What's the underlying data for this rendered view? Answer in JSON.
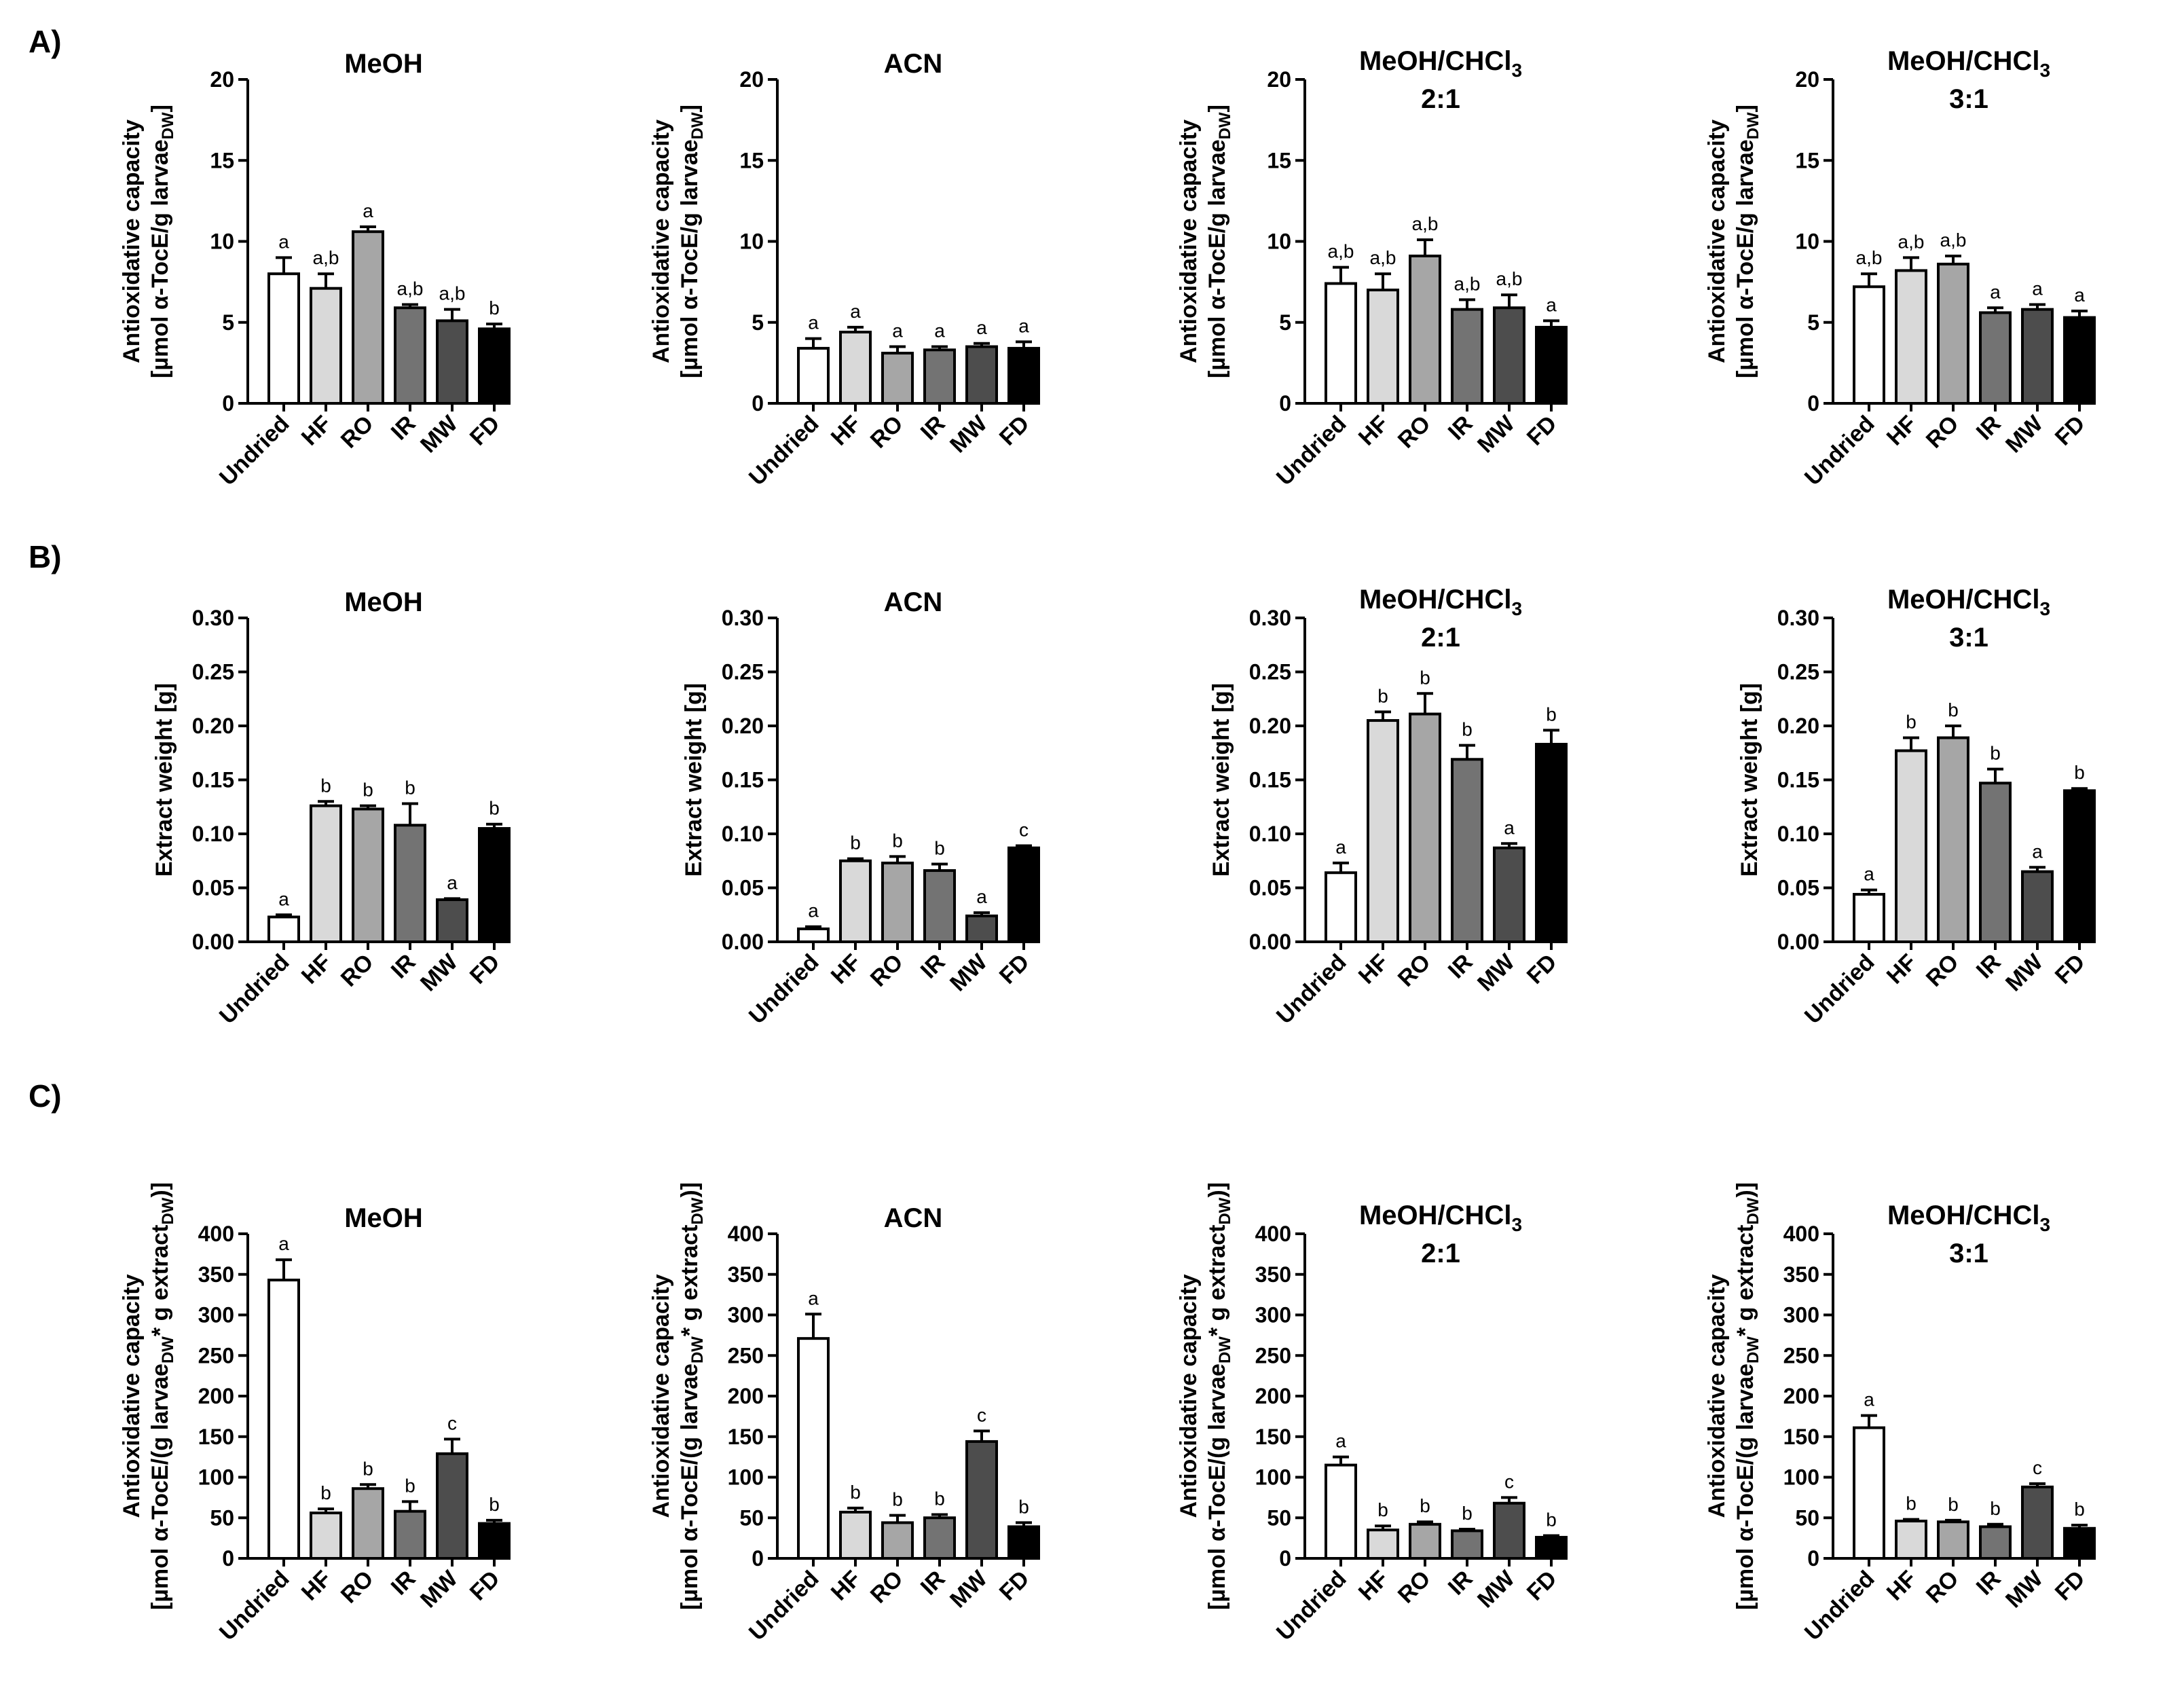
{
  "categories": [
    "Undried",
    "HF",
    "RO",
    "IR",
    "MW",
    "FD"
  ],
  "bar_colors": [
    "#ffffff",
    "#d9d9d9",
    "#a6a6a6",
    "#737373",
    "#4d4d4d",
    "#000000"
  ],
  "rows": [
    {
      "label": "A)",
      "ylabel_lines": [
        "Antioxidative capacity",
        "[µmol α-TocE/g larvae",
        "DW",
        "]"
      ],
      "yticks": [
        "0",
        "5",
        "10",
        "15",
        "20"
      ],
      "ylim": [
        0,
        20
      ],
      "panels": [
        {
          "title_lines": [
            "MeOH",
            ""
          ],
          "values": [
            8.0,
            7.1,
            10.6,
            5.9,
            5.1,
            4.6
          ],
          "errors": [
            1.0,
            0.9,
            0.3,
            0.2,
            0.7,
            0.3
          ],
          "sig": [
            "a",
            "a,b",
            "a",
            "a,b",
            "a,b",
            "b"
          ]
        },
        {
          "title_lines": [
            "ACN",
            ""
          ],
          "values": [
            3.4,
            4.4,
            3.1,
            3.3,
            3.5,
            3.4
          ],
          "errors": [
            0.6,
            0.3,
            0.4,
            0.2,
            0.2,
            0.4
          ],
          "sig": [
            "a",
            "a",
            "a",
            "a",
            "a",
            "a"
          ]
        },
        {
          "title_lines": [
            "MeOH/CHCl",
            "3",
            "2:1"
          ],
          "values": [
            7.4,
            7.0,
            9.1,
            5.8,
            5.9,
            4.7
          ],
          "errors": [
            1.0,
            1.0,
            1.0,
            0.6,
            0.8,
            0.4
          ],
          "sig": [
            "a,b",
            "a,b",
            "a,b",
            "a,b",
            "a,b",
            "a"
          ]
        },
        {
          "title_lines": [
            "MeOH/CHCl",
            "3",
            "3:1"
          ],
          "values": [
            7.2,
            8.2,
            8.6,
            5.6,
            5.8,
            5.3
          ],
          "errors": [
            0.8,
            0.8,
            0.5,
            0.3,
            0.3,
            0.4
          ],
          "sig": [
            "a,b",
            "a,b",
            "a,b",
            "a",
            "a",
            "a"
          ]
        }
      ]
    },
    {
      "label": "B)",
      "ylabel_lines": [
        "Extract weight [g]",
        "",
        "",
        ""
      ],
      "yticks": [
        "0.00",
        "0.05",
        "0.10",
        "0.15",
        "0.20",
        "0.25",
        "0.30"
      ],
      "ylim": [
        0,
        0.3
      ],
      "panels": [
        {
          "title_lines": [
            "MeOH",
            ""
          ],
          "values": [
            0.023,
            0.126,
            0.123,
            0.108,
            0.039,
            0.105
          ],
          "errors": [
            0.002,
            0.004,
            0.003,
            0.02,
            0.001,
            0.004
          ],
          "sig": [
            "a",
            "b",
            "b",
            "b",
            "a",
            "b"
          ]
        },
        {
          "title_lines": [
            "ACN",
            ""
          ],
          "values": [
            0.012,
            0.075,
            0.073,
            0.066,
            0.024,
            0.087
          ],
          "errors": [
            0.002,
            0.002,
            0.006,
            0.006,
            0.003,
            0.002
          ],
          "sig": [
            "a",
            "b",
            "b",
            "b",
            "a",
            "c"
          ]
        },
        {
          "title_lines": [
            "MeOH/CHCl",
            "3",
            "2:1"
          ],
          "values": [
            0.064,
            0.205,
            0.211,
            0.169,
            0.087,
            0.183
          ],
          "errors": [
            0.009,
            0.008,
            0.019,
            0.013,
            0.004,
            0.013
          ],
          "sig": [
            "a",
            "b",
            "b",
            "b",
            "a",
            "b"
          ]
        },
        {
          "title_lines": [
            "MeOH/CHCl",
            "3",
            "3:1"
          ],
          "values": [
            0.044,
            0.177,
            0.189,
            0.147,
            0.065,
            0.14
          ],
          "errors": [
            0.004,
            0.012,
            0.011,
            0.013,
            0.004,
            0.002
          ],
          "sig": [
            "a",
            "b",
            "b",
            "b",
            "a",
            "b"
          ]
        }
      ]
    },
    {
      "label": "C)",
      "ylabel_lines": [
        "Antioxidative capacity",
        "[µmol α-TocE/(g larvae",
        "DW",
        "* g extract",
        "DW",
        ")]"
      ],
      "yticks": [
        "0",
        "50",
        "100",
        "150",
        "200",
        "250",
        "300",
        "350",
        "400"
      ],
      "ylim": [
        0,
        400
      ],
      "panels": [
        {
          "title_lines": [
            "MeOH",
            ""
          ],
          "values": [
            343,
            56,
            86,
            58,
            129,
            43
          ],
          "errors": [
            25,
            5,
            5,
            12,
            18,
            4
          ],
          "sig": [
            "a",
            "b",
            "b",
            "b",
            "c",
            "b"
          ]
        },
        {
          "title_lines": [
            "ACN",
            ""
          ],
          "values": [
            271,
            57,
            44,
            50,
            144,
            39
          ],
          "errors": [
            30,
            5,
            9,
            4,
            13,
            5
          ],
          "sig": [
            "a",
            "b",
            "b",
            "b",
            "c",
            "b"
          ]
        },
        {
          "title_lines": [
            "MeOH/CHCl",
            "3",
            "2:1"
          ],
          "values": [
            115,
            35,
            42,
            34,
            68,
            26
          ],
          "errors": [
            10,
            5,
            3,
            2,
            7,
            2
          ],
          "sig": [
            "a",
            "b",
            "b",
            "b",
            "c",
            "b"
          ]
        },
        {
          "title_lines": [
            "MeOH/CHCl",
            "3",
            "3:1"
          ],
          "values": [
            161,
            46,
            45,
            39,
            88,
            37
          ],
          "errors": [
            15,
            2,
            2,
            3,
            4,
            4
          ],
          "sig": [
            "a",
            "b",
            "b",
            "b",
            "c",
            "b"
          ]
        }
      ]
    }
  ],
  "chart_data": [
    {
      "type": "bar",
      "categories": [
        "Undried",
        "HF",
        "RO",
        "IR",
        "MW",
        "FD"
      ],
      "title": "MeOH",
      "ylabel": "Antioxidative capacity [µmol α-TocE/g larvaeDW]",
      "ylim": [
        0,
        20
      ],
      "values": [
        8.0,
        7.1,
        10.6,
        5.9,
        5.1,
        4.6
      ],
      "errors": [
        1.0,
        0.9,
        0.3,
        0.2,
        0.7,
        0.3
      ],
      "labels": [
        "a",
        "a,b",
        "a",
        "a,b",
        "a,b",
        "b"
      ]
    },
    {
      "type": "bar",
      "categories": [
        "Undried",
        "HF",
        "RO",
        "IR",
        "MW",
        "FD"
      ],
      "title": "ACN",
      "ylabel": "Antioxidative capacity [µmol α-TocE/g larvaeDW]",
      "ylim": [
        0,
        20
      ],
      "values": [
        3.4,
        4.4,
        3.1,
        3.3,
        3.5,
        3.4
      ],
      "errors": [
        0.6,
        0.3,
        0.4,
        0.2,
        0.2,
        0.4
      ],
      "labels": [
        "a",
        "a",
        "a",
        "a",
        "a",
        "a"
      ]
    },
    {
      "type": "bar",
      "categories": [
        "Undried",
        "HF",
        "RO",
        "IR",
        "MW",
        "FD"
      ],
      "title": "MeOH/CHCl3 2:1",
      "ylabel": "Antioxidative capacity [µmol α-TocE/g larvaeDW]",
      "ylim": [
        0,
        20
      ],
      "values": [
        7.4,
        7.0,
        9.1,
        5.8,
        5.9,
        4.7
      ],
      "errors": [
        1.0,
        1.0,
        1.0,
        0.6,
        0.8,
        0.4
      ],
      "labels": [
        "a,b",
        "a,b",
        "a,b",
        "a,b",
        "a,b",
        "a"
      ]
    },
    {
      "type": "bar",
      "categories": [
        "Undried",
        "HF",
        "RO",
        "IR",
        "MW",
        "FD"
      ],
      "title": "MeOH/CHCl3 3:1",
      "ylabel": "Antioxidative capacity [µmol α-TocE/g larvaeDW]",
      "ylim": [
        0,
        20
      ],
      "values": [
        7.2,
        8.2,
        8.6,
        5.6,
        5.8,
        5.3
      ],
      "errors": [
        0.8,
        0.8,
        0.5,
        0.3,
        0.3,
        0.4
      ],
      "labels": [
        "a,b",
        "a,b",
        "a,b",
        "a",
        "a",
        "a"
      ]
    },
    {
      "type": "bar",
      "categories": [
        "Undried",
        "HF",
        "RO",
        "IR",
        "MW",
        "FD"
      ],
      "title": "MeOH",
      "ylabel": "Extract weight [g]",
      "ylim": [
        0,
        0.3
      ],
      "values": [
        0.023,
        0.126,
        0.123,
        0.108,
        0.039,
        0.105
      ],
      "errors": [
        0.002,
        0.004,
        0.003,
        0.02,
        0.001,
        0.004
      ],
      "labels": [
        "a",
        "b",
        "b",
        "b",
        "a",
        "b"
      ]
    },
    {
      "type": "bar",
      "categories": [
        "Undried",
        "HF",
        "RO",
        "IR",
        "MW",
        "FD"
      ],
      "title": "ACN",
      "ylabel": "Extract weight [g]",
      "ylim": [
        0,
        0.3
      ],
      "values": [
        0.012,
        0.075,
        0.073,
        0.066,
        0.024,
        0.087
      ],
      "errors": [
        0.002,
        0.002,
        0.006,
        0.006,
        0.003,
        0.002
      ],
      "labels": [
        "a",
        "b",
        "b",
        "b",
        "a",
        "c"
      ]
    },
    {
      "type": "bar",
      "categories": [
        "Undried",
        "HF",
        "RO",
        "IR",
        "MW",
        "FD"
      ],
      "title": "MeOH/CHCl3 2:1",
      "ylabel": "Extract weight [g]",
      "ylim": [
        0,
        0.3
      ],
      "values": [
        0.064,
        0.205,
        0.211,
        0.169,
        0.087,
        0.183
      ],
      "errors": [
        0.009,
        0.008,
        0.019,
        0.013,
        0.004,
        0.013
      ],
      "labels": [
        "a",
        "b",
        "b",
        "b",
        "a",
        "b"
      ]
    },
    {
      "type": "bar",
      "categories": [
        "Undried",
        "HF",
        "RO",
        "IR",
        "MW",
        "FD"
      ],
      "title": "MeOH/CHCl3 3:1",
      "ylabel": "Extract weight [g]",
      "ylim": [
        0,
        0.3
      ],
      "values": [
        0.044,
        0.177,
        0.189,
        0.147,
        0.065,
        0.14
      ],
      "errors": [
        0.004,
        0.012,
        0.011,
        0.013,
        0.004,
        0.002
      ],
      "labels": [
        "a",
        "b",
        "b",
        "b",
        "a",
        "b"
      ]
    },
    {
      "type": "bar",
      "categories": [
        "Undried",
        "HF",
        "RO",
        "IR",
        "MW",
        "FD"
      ],
      "title": "MeOH",
      "ylabel": "Antioxidative capacity [µmol α-TocE/(g larvaeDW * g extractDW)]",
      "ylim": [
        0,
        400
      ],
      "values": [
        343,
        56,
        86,
        58,
        129,
        43
      ],
      "errors": [
        25,
        5,
        5,
        12,
        18,
        4
      ],
      "labels": [
        "a",
        "b",
        "b",
        "b",
        "c",
        "b"
      ]
    },
    {
      "type": "bar",
      "categories": [
        "Undried",
        "HF",
        "RO",
        "IR",
        "MW",
        "FD"
      ],
      "title": "ACN",
      "ylabel": "Antioxidative capacity [µmol α-TocE/(g larvaeDW * g extractDW)]",
      "ylim": [
        0,
        400
      ],
      "values": [
        271,
        57,
        44,
        50,
        144,
        39
      ],
      "errors": [
        30,
        5,
        9,
        4,
        13,
        5
      ],
      "labels": [
        "a",
        "b",
        "b",
        "b",
        "c",
        "b"
      ]
    },
    {
      "type": "bar",
      "categories": [
        "Undried",
        "HF",
        "RO",
        "IR",
        "MW",
        "FD"
      ],
      "title": "MeOH/CHCl3 2:1",
      "ylabel": "Antioxidative capacity [µmol α-TocE/(g larvaeDW * g extractDW)]",
      "ylim": [
        0,
        400
      ],
      "values": [
        115,
        35,
        42,
        34,
        68,
        26
      ],
      "errors": [
        10,
        5,
        3,
        2,
        7,
        2
      ],
      "labels": [
        "a",
        "b",
        "b",
        "b",
        "c",
        "b"
      ]
    },
    {
      "type": "bar",
      "categories": [
        "Undried",
        "HF",
        "RO",
        "IR",
        "MW",
        "FD"
      ],
      "title": "MeOH/CHCl3 3:1",
      "ylabel": "Antioxidative capacity [µmol α-TocE/(g larvaeDW * g extractDW)]",
      "ylim": [
        0,
        400
      ],
      "values": [
        161,
        46,
        45,
        39,
        88,
        37
      ],
      "errors": [
        15,
        2,
        2,
        3,
        4,
        4
      ],
      "labels": [
        "a",
        "b",
        "b",
        "b",
        "c",
        "b"
      ]
    }
  ]
}
